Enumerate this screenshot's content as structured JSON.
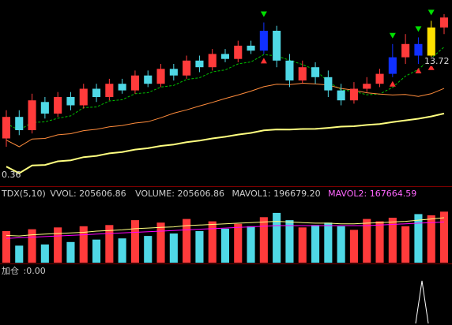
{
  "price_labels": {
    "high_price": "13.72",
    "low_price": "0.36"
  },
  "volume_header": {
    "indicator": "TDX(5,10)",
    "vvol_label": "VVOL:",
    "vvol_value": "205606.86",
    "volume_label": "VOLUME:",
    "volume_value": "205606.86",
    "mavol1_label": "MAVOL1:",
    "mavol1_value": "196679.20",
    "mavol2_label": "MAVOL2:",
    "mavol2_value": "167664.59"
  },
  "lower_panel": {
    "label": "加仓",
    "value": ":0.00"
  },
  "colors": {
    "up": "#ff3b3b",
    "down": "#4fd8e6",
    "blue_bar": "#1030ff",
    "yellow_bar": "#ffe000",
    "ma_green": "#00c000",
    "ma_orange": "#ff8c3c",
    "ma_yellow": "#ffff80",
    "mavol1": "#ffff80",
    "mavol2": "#ff00ff",
    "arrow_green": "#00e000",
    "arrow_red": "#ff3333"
  },
  "chart_data": [
    {
      "type": "candlestick",
      "ylim": [
        0,
        100
      ],
      "series": [
        {
          "o": 25,
          "c": 38,
          "h": 42,
          "l": 20,
          "u": 1
        },
        {
          "o": 38,
          "c": 30,
          "h": 42,
          "l": 27,
          "u": 0
        },
        {
          "o": 30,
          "c": 48,
          "h": 52,
          "l": 28,
          "u": 1
        },
        {
          "o": 47,
          "c": 40,
          "h": 50,
          "l": 37,
          "u": 0
        },
        {
          "o": 40,
          "c": 50,
          "h": 53,
          "l": 38,
          "u": 1
        },
        {
          "o": 50,
          "c": 45,
          "h": 53,
          "l": 42,
          "u": 0
        },
        {
          "o": 45,
          "c": 55,
          "h": 58,
          "l": 43,
          "u": 1
        },
        {
          "o": 55,
          "c": 50,
          "h": 58,
          "l": 47,
          "u": 0
        },
        {
          "o": 50,
          "c": 58,
          "h": 61,
          "l": 48,
          "u": 1
        },
        {
          "o": 58,
          "c": 54,
          "h": 61,
          "l": 52,
          "u": 0
        },
        {
          "o": 54,
          "c": 63,
          "h": 66,
          "l": 52,
          "u": 1
        },
        {
          "o": 63,
          "c": 58,
          "h": 66,
          "l": 56,
          "u": 0
        },
        {
          "o": 58,
          "c": 67,
          "h": 70,
          "l": 56,
          "u": 1
        },
        {
          "o": 67,
          "c": 63,
          "h": 70,
          "l": 60,
          "u": 0
        },
        {
          "o": 63,
          "c": 72,
          "h": 75,
          "l": 61,
          "u": 1
        },
        {
          "o": 72,
          "c": 68,
          "h": 75,
          "l": 65,
          "u": 0
        },
        {
          "o": 68,
          "c": 76,
          "h": 79,
          "l": 66,
          "u": 1
        },
        {
          "o": 76,
          "c": 73,
          "h": 79,
          "l": 71,
          "u": 0
        },
        {
          "o": 73,
          "c": 81,
          "h": 84,
          "l": 71,
          "u": 1
        },
        {
          "o": 81,
          "c": 78,
          "h": 84,
          "l": 76,
          "u": 0
        },
        {
          "o": 78,
          "c": 90,
          "h": 95,
          "l": 76,
          "u": 1,
          "flag": "blue"
        },
        {
          "o": 90,
          "c": 72,
          "h": 93,
          "l": 68,
          "u": 0
        },
        {
          "o": 72,
          "c": 60,
          "h": 76,
          "l": 56,
          "u": 0
        },
        {
          "o": 60,
          "c": 68,
          "h": 72,
          "l": 58,
          "u": 1
        },
        {
          "o": 68,
          "c": 62,
          "h": 71,
          "l": 58,
          "u": 0
        },
        {
          "o": 62,
          "c": 54,
          "h": 66,
          "l": 50,
          "u": 0
        },
        {
          "o": 54,
          "c": 48,
          "h": 58,
          "l": 45,
          "u": 0
        },
        {
          "o": 48,
          "c": 55,
          "h": 59,
          "l": 46,
          "u": 1
        },
        {
          "o": 55,
          "c": 58,
          "h": 62,
          "l": 53,
          "u": 1
        },
        {
          "o": 58,
          "c": 64,
          "h": 67,
          "l": 56,
          "u": 1
        },
        {
          "o": 64,
          "c": 74,
          "h": 82,
          "l": 62,
          "u": 1,
          "flag": "blue"
        },
        {
          "o": 74,
          "c": 82,
          "h": 88,
          "l": 70,
          "u": 1
        },
        {
          "o": 82,
          "c": 75,
          "h": 86,
          "l": 70,
          "u": 0,
          "flag": "blue"
        },
        {
          "o": 75,
          "c": 92,
          "h": 96,
          "l": 72,
          "u": 1,
          "flag": "yellow"
        },
        {
          "o": 92,
          "c": 98,
          "h": 100,
          "l": 88,
          "u": 1
        }
      ]
    },
    {
      "type": "bar",
      "series": [
        {
          "name": "VOLUME",
          "values": [
            52,
            28,
            55,
            30,
            58,
            34,
            60,
            38,
            62,
            40,
            70,
            44,
            66,
            48,
            72,
            52,
            68,
            56,
            64,
            60,
            75,
            82,
            70,
            58,
            62,
            66,
            60,
            54,
            72,
            68,
            74,
            60,
            80,
            78,
            84
          ]
        },
        {
          "name": "MAVOL1",
          "values": [
            45,
            44,
            46,
            47,
            48,
            49,
            50,
            52,
            53,
            54,
            56,
            57,
            58,
            59,
            61,
            62,
            63,
            64,
            65,
            66,
            67,
            68,
            67,
            66,
            65,
            65,
            64,
            64,
            65,
            66,
            67,
            68,
            70,
            72,
            74
          ]
        },
        {
          "name": "MAVOL2",
          "values": [
            40,
            41,
            42,
            43,
            44,
            45,
            46,
            47,
            48,
            49,
            50,
            51,
            52,
            53,
            54,
            55,
            56,
            57,
            58,
            59,
            60,
            61,
            61,
            61,
            61,
            61,
            61,
            61,
            61,
            62,
            63,
            64,
            65,
            66,
            67
          ]
        }
      ]
    }
  ]
}
